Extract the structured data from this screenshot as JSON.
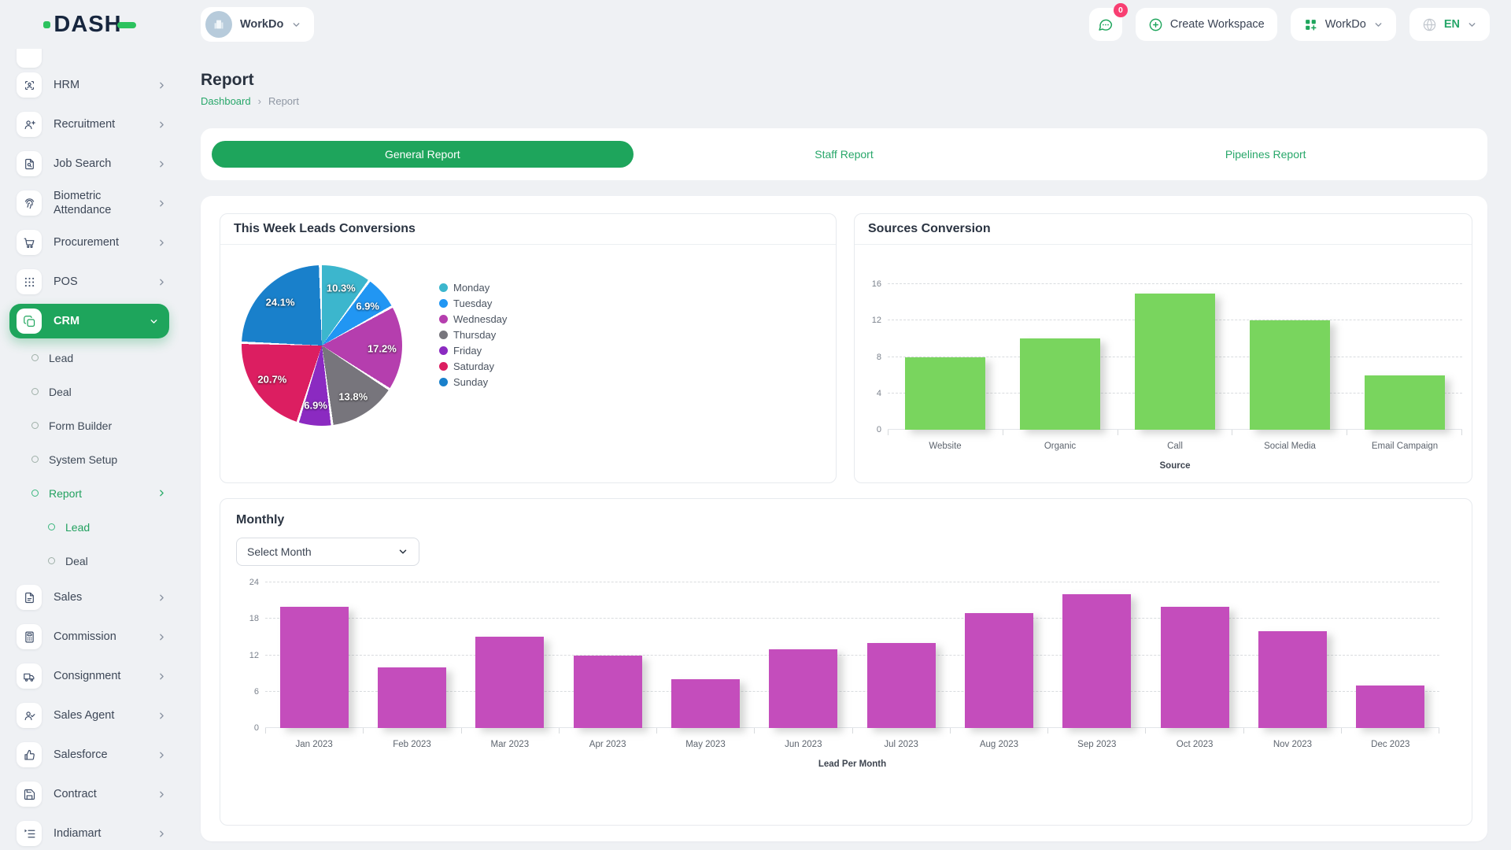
{
  "header": {
    "logo_text": "DASH",
    "workspace_switcher": "WorkDo",
    "messages_badge": "0",
    "create_workspace": "Create Workspace",
    "apps_button": "WorkDo",
    "language": "EN"
  },
  "sidebar": {
    "items": [
      {
        "label": "HRM",
        "icon": "hrm-icon",
        "type": "parent",
        "chevron": "right"
      },
      {
        "label": "Recruitment",
        "icon": "recruitment-icon",
        "type": "parent",
        "chevron": "right"
      },
      {
        "label": "Job Search",
        "icon": "job-search-icon",
        "type": "parent",
        "chevron": "right"
      },
      {
        "label": "Biometric Attendance",
        "icon": "biometric-attendance-icon",
        "type": "parent",
        "chevron": "right"
      },
      {
        "label": "Procurement",
        "icon": "procurement-icon",
        "type": "parent",
        "chevron": "right"
      },
      {
        "label": "POS",
        "icon": "pos-icon",
        "type": "parent",
        "chevron": "right"
      },
      {
        "label": "CRM",
        "icon": "crm-icon",
        "type": "parent",
        "active": true,
        "chevron": "down"
      },
      {
        "label": "Lead",
        "type": "sub"
      },
      {
        "label": "Deal",
        "type": "sub"
      },
      {
        "label": "Form Builder",
        "type": "sub"
      },
      {
        "label": "System Setup",
        "type": "sub"
      },
      {
        "label": "Report",
        "type": "sub",
        "active": true,
        "chevron": "right"
      },
      {
        "label": "Lead",
        "type": "subsub",
        "active": true
      },
      {
        "label": "Deal",
        "type": "subsub"
      },
      {
        "label": "Sales",
        "icon": "sales-icon",
        "type": "parent",
        "chevron": "right"
      },
      {
        "label": "Commission",
        "icon": "commission-icon",
        "type": "parent",
        "chevron": "right"
      },
      {
        "label": "Consignment",
        "icon": "consignment-icon",
        "type": "parent",
        "chevron": "right"
      },
      {
        "label": "Sales Agent",
        "icon": "sales-agent-icon",
        "type": "parent",
        "chevron": "right"
      },
      {
        "label": "Salesforce",
        "icon": "salesforce-icon",
        "type": "parent",
        "chevron": "right"
      },
      {
        "label": "Contract",
        "icon": "contract-icon",
        "type": "parent",
        "chevron": "right"
      },
      {
        "label": "Indiamart",
        "icon": "indiamart-icon",
        "type": "parent",
        "chevron": "right"
      }
    ]
  },
  "page": {
    "title": "Report",
    "breadcrumb": {
      "home": "Dashboard",
      "separator": "›",
      "current": "Report"
    }
  },
  "tabs": [
    {
      "label": "General Report",
      "active": true
    },
    {
      "label": "Staff Report",
      "active": false
    },
    {
      "label": "Pipelines Report",
      "active": false
    }
  ],
  "cards": {
    "weekly": {
      "title": "This Week Leads Conversions"
    },
    "sources": {
      "title": "Sources Conversion"
    },
    "monthly": {
      "title": "Monthly",
      "select_month_placeholder": "Select Month"
    }
  },
  "chart_data": [
    {
      "name": "this-week-leads-conversions",
      "type": "pie",
      "title": "This Week Leads Conversions",
      "labels": [
        "Monday",
        "Tuesday",
        "Wednesday",
        "Thursday",
        "Friday",
        "Saturday",
        "Sunday"
      ],
      "values_percent": [
        10.3,
        6.9,
        17.2,
        13.8,
        6.9,
        20.7,
        24.1
      ],
      "slice_labels": [
        "10.3%",
        "6.9%",
        "17.2%",
        "13.8%",
        "6.9%",
        "20.7%",
        "24.1%"
      ],
      "colors": [
        "#3cb6cd",
        "#2196f3",
        "#b53eae",
        "#77757c",
        "#8b2ac1",
        "#dc1e61",
        "#1980cb"
      ],
      "legend_position": "right"
    },
    {
      "name": "sources-conversion",
      "type": "bar",
      "title": "Sources Conversion",
      "categories": [
        "Website",
        "Organic",
        "Call",
        "Social Media",
        "Email Campaign"
      ],
      "values": [
        8,
        10,
        15,
        12,
        6
      ],
      "xlabel": "Source",
      "ylabel": "",
      "ylim": [
        0,
        16
      ],
      "yticks": [
        0,
        4,
        8,
        12,
        16
      ],
      "bar_color": "#79d55e",
      "grid": "dashed-horizontal"
    },
    {
      "name": "monthly-leads",
      "type": "bar",
      "title": "Monthly",
      "categories": [
        "Jan 2023",
        "Feb 2023",
        "Mar 2023",
        "Apr 2023",
        "May 2023",
        "Jun 2023",
        "Jul 2023",
        "Aug 2023",
        "Sep 2023",
        "Oct 2023",
        "Nov 2023",
        "Dec 2023"
      ],
      "values": [
        20,
        10,
        15,
        12,
        8,
        13,
        14,
        19,
        22,
        20,
        16,
        7
      ],
      "xlabel": "Lead Per Month",
      "ylabel": "",
      "ylim": [
        0,
        24
      ],
      "yticks": [
        0,
        6,
        12,
        18,
        24
      ],
      "bar_color": "#c44dbc",
      "grid": "dashed-horizontal"
    }
  ]
}
